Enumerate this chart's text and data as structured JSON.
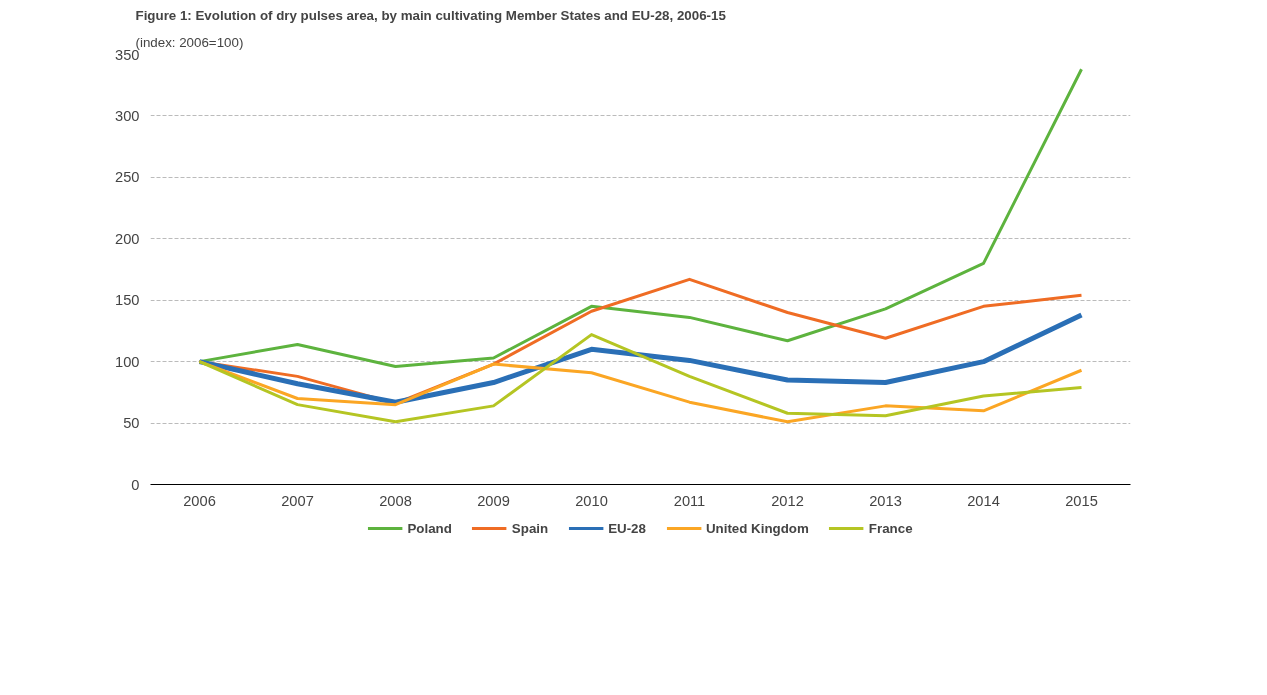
{
  "chart_data": {
    "type": "line",
    "title": "Figure 1: Evolution of dry pulses area, by main cultivating Member States and EU-28, 2006-15",
    "subtitle": "(index: 2006=100)",
    "categories": [
      "2006",
      "2007",
      "2008",
      "2009",
      "2010",
      "2011",
      "2012",
      "2013",
      "2014",
      "2015"
    ],
    "series": [
      {
        "name": "Poland",
        "color": "#5db33e",
        "values": [
          100,
          114,
          96,
          103,
          145,
          136,
          117,
          143,
          180,
          338
        ]
      },
      {
        "name": "Spain",
        "color": "#ef6c24",
        "values": [
          100,
          88,
          66,
          98,
          141,
          167,
          140,
          119,
          145,
          154
        ]
      },
      {
        "name": "EU-28",
        "color": "#2a6fb6",
        "values": [
          100,
          82,
          67,
          83,
          110,
          101,
          85,
          83,
          100,
          138
        ]
      },
      {
        "name": "United Kingdom",
        "color": "#fba624",
        "values": [
          100,
          70,
          65,
          98,
          91,
          67,
          51,
          64,
          60,
          93
        ]
      },
      {
        "name": "France",
        "color": "#b5c523",
        "values": [
          100,
          65,
          51,
          64,
          122,
          88,
          58,
          56,
          72,
          79
        ]
      }
    ],
    "ylim": [
      0,
      350
    ],
    "yticks": [
      0,
      50,
      100,
      150,
      200,
      250,
      300,
      350
    ],
    "grid": "y",
    "legend": "bottom",
    "line_style": "solid"
  }
}
